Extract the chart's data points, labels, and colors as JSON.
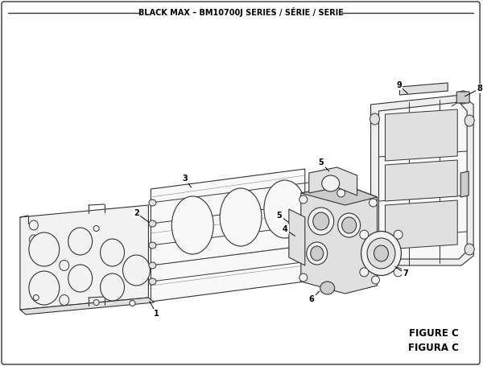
{
  "title": "BLACK MAX – BM10700J SERIES / SÉRIE / SERIE",
  "figure_label": "FIGURE C",
  "figura_label": "FIGURA C",
  "bg_color": "#ffffff",
  "line_color": "#333333",
  "line_width": 0.7,
  "fill_light": "#f2f2f2",
  "fill_mid": "#e0e0e0",
  "fill_dark": "#cccccc"
}
